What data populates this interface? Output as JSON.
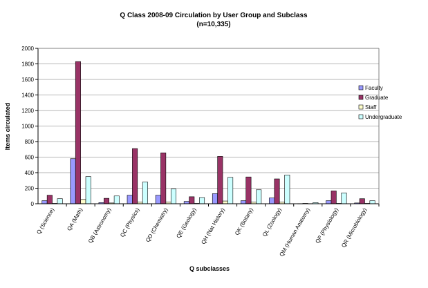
{
  "chart_data": {
    "type": "bar",
    "title": "Q Class 2008-09 Circulation by User Group and Subclass",
    "subtitle": "(n=10,335)",
    "xlabel": "Q subclasses",
    "ylabel": "Items circulated",
    "ylim": [
      0,
      2000
    ],
    "yticks": [
      0,
      200,
      400,
      600,
      800,
      1000,
      1200,
      1400,
      1600,
      1800,
      2000
    ],
    "grid": true,
    "legend": "right",
    "categories": [
      "Q (Science)",
      "QA (Math)",
      "QB (Astronomy)",
      "QC (Physics)",
      "QD (Chemistry)",
      "QE (Geology)",
      "QH (Nat History)",
      "QK (Botany)",
      "QL (Zoology)",
      "QM (Human Anatomy)",
      "QP (Physiology)",
      "QR (Microbiology)"
    ],
    "series": [
      {
        "name": "Faculty",
        "color": "#9999FF",
        "values": [
          40,
          580,
          15,
          110,
          110,
          30,
          130,
          40,
          75,
          2,
          40,
          10
        ]
      },
      {
        "name": "Graduate",
        "color": "#993366",
        "values": [
          110,
          1830,
          70,
          710,
          655,
          90,
          610,
          345,
          320,
          5,
          165,
          65
        ]
      },
      {
        "name": "Staff",
        "color": "#FFFFCC",
        "values": [
          5,
          55,
          10,
          20,
          20,
          5,
          35,
          20,
          20,
          2,
          5,
          5
        ]
      },
      {
        "name": "Undergraduate",
        "color": "#CCFFFF",
        "values": [
          65,
          350,
          100,
          280,
          190,
          80,
          340,
          180,
          370,
          15,
          140,
          40
        ]
      }
    ]
  }
}
